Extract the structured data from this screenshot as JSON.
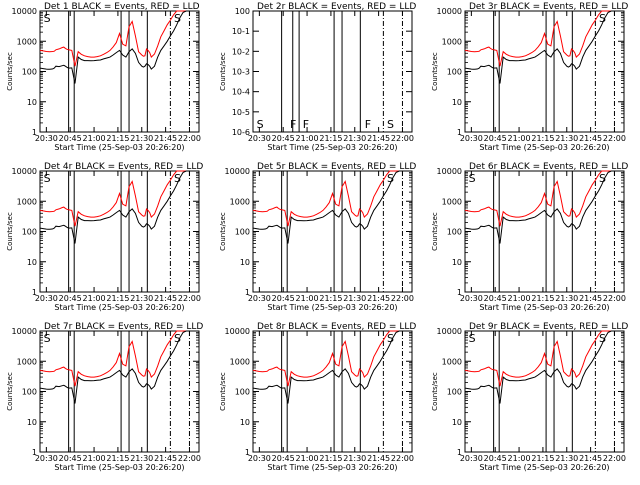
{
  "chart_data": {
    "type": "line",
    "layout": "3x3 grid of time-series panels",
    "xlabel": "Start Time (25-Sep-03 20:26:20)",
    "ylabel": "Counts/sec",
    "x_tick_labels": [
      "20:30",
      "20:45",
      "21:00",
      "21:15",
      "21:30",
      "21:45",
      "22:00"
    ],
    "x_ticks_min": [
      4,
      19,
      34,
      49,
      64,
      79,
      94
    ],
    "xlim_min": [
      0,
      100
    ],
    "ylim": [
      1,
      10000
    ],
    "y_tick_labels": [
      "1",
      "10",
      "100",
      "1000",
      "10000"
    ],
    "y_tick_values": [
      1,
      10,
      100,
      1000,
      10000
    ],
    "empty_panel_ylim": [
      1e-06,
      1.0
    ],
    "empty_panel_y_tick_labels": [
      "10-6",
      "10-5",
      "10-4",
      "10-3",
      "10-2",
      "10-1",
      "100"
    ],
    "empty_panel_y_tick_values": [
      -6,
      -5,
      -4,
      -3,
      -2,
      -1,
      0
    ],
    "series": [
      {
        "name": "Events",
        "color": "#000000"
      },
      {
        "name": "LLD",
        "color": "#ff0000"
      }
    ],
    "time_min": [
      0,
      2,
      4,
      5,
      6,
      7,
      8,
      9,
      10,
      12,
      14,
      15,
      16,
      17,
      18,
      20,
      22,
      24,
      26,
      28,
      30,
      32,
      34,
      36,
      38,
      40,
      42,
      44,
      46,
      48,
      50,
      52,
      54,
      56,
      58,
      60,
      62,
      64,
      65,
      66,
      67,
      68,
      69,
      70,
      72,
      74,
      76,
      78,
      80,
      82,
      84,
      86,
      88,
      90,
      92,
      94,
      96,
      98,
      100
    ],
    "events": [
      130,
      125,
      120,
      118,
      118,
      120,
      122,
      130,
      150,
      145,
      155,
      160,
      150,
      138,
      130,
      132,
      40,
      300,
      250,
      230,
      230,
      225,
      230,
      235,
      240,
      260,
      280,
      300,
      350,
      420,
      500,
      350,
      300,
      450,
      560,
      400,
      200,
      150,
      140,
      150,
      180,
      170,
      150,
      120,
      150,
      300,
      500,
      700,
      1000,
      1500,
      2200,
      3500,
      6000,
      9000,
      10000,
      10000,
      10000,
      10000,
      10000
    ],
    "lld": [
      500,
      480,
      460,
      455,
      450,
      455,
      460,
      470,
      520,
      560,
      620,
      640,
      580,
      540,
      520,
      500,
      150,
      450,
      370,
      330,
      310,
      300,
      300,
      310,
      330,
      370,
      420,
      500,
      650,
      900,
      1800,
      800,
      700,
      3000,
      4500,
      1500,
      450,
      350,
      320,
      330,
      560,
      500,
      420,
      300,
      380,
      700,
      1400,
      2200,
      3500,
      5000,
      7500,
      10000,
      10000,
      10000,
      10000,
      10000,
      10000,
      10000,
      10000
    ],
    "panels": [
      {
        "title": "Det 1 BLACK = Events, RED = LLD",
        "empty": false,
        "solid_markers": [
          18,
          21.5,
          51,
          56,
          67.5
        ],
        "dashed_markers": [
          82,
          94
        ],
        "letters": [
          {
            "text": "S",
            "t": 1
          },
          {
            "text": "S",
            "t": 83
          }
        ]
      },
      {
        "title": "Det 2r BLACK = Events, RED = LLD",
        "empty": true,
        "solid_markers": [
          18,
          25,
          29,
          51,
          56,
          67.5
        ],
        "dashed_markers": [
          82,
          94
        ],
        "letters": [
          {
            "text": "S",
            "t": 1
          },
          {
            "text": "F",
            "t": 22
          },
          {
            "text": "F",
            "t": 30
          },
          {
            "text": "F",
            "t": 69
          },
          {
            "text": "S",
            "t": 83
          }
        ]
      },
      {
        "title": "Det 3r BLACK = Events, RED = LLD",
        "empty": false,
        "solid_markers": [
          18,
          21.5,
          51,
          56,
          67.5
        ],
        "dashed_markers": [
          82,
          94
        ],
        "letters": [
          {
            "text": "S",
            "t": 83
          }
        ]
      },
      {
        "title": "Det 4r BLACK = Events, RED = LLD",
        "empty": false,
        "solid_markers": [
          18,
          21.5,
          51,
          56,
          67.5
        ],
        "dashed_markers": [
          82,
          94
        ],
        "letters": [
          {
            "text": "S",
            "t": 1
          },
          {
            "text": "S",
            "t": 83
          }
        ]
      },
      {
        "title": "Det 5r BLACK = Events, RED = LLD",
        "empty": false,
        "solid_markers": [
          18,
          21.5,
          51,
          56,
          67.5
        ],
        "dashed_markers": [
          82,
          94
        ],
        "letters": [
          {
            "text": "S",
            "t": 83
          }
        ]
      },
      {
        "title": "Det 6r BLACK = Events, RED = LLD",
        "empty": false,
        "solid_markers": [
          18,
          21.5,
          51,
          56,
          67.5
        ],
        "dashed_markers": [
          82,
          94
        ],
        "letters": [
          {
            "text": "S",
            "t": 1
          },
          {
            "text": "S",
            "t": 83
          }
        ]
      },
      {
        "title": "Det 7r BLACK = Events, RED = LLD",
        "empty": false,
        "solid_markers": [
          18,
          21.5,
          51,
          56,
          67.5
        ],
        "dashed_markers": [
          82,
          94
        ],
        "letters": [
          {
            "text": "S",
            "t": 1
          },
          {
            "text": "S",
            "t": 83
          }
        ]
      },
      {
        "title": "Det 8r BLACK = Events, RED = LLD",
        "empty": false,
        "solid_markers": [
          18,
          21.5,
          51,
          56,
          67.5
        ],
        "dashed_markers": [
          82,
          94
        ],
        "letters": [
          {
            "text": "S",
            "t": 83
          }
        ]
      },
      {
        "title": "Det 9r BLACK = Events, RED = LLD",
        "empty": false,
        "solid_markers": [
          18,
          21.5,
          51,
          56,
          67.5
        ],
        "dashed_markers": [
          82,
          94
        ],
        "letters": [
          {
            "text": "S",
            "t": 1
          },
          {
            "text": "S",
            "t": 83
          }
        ]
      }
    ]
  }
}
